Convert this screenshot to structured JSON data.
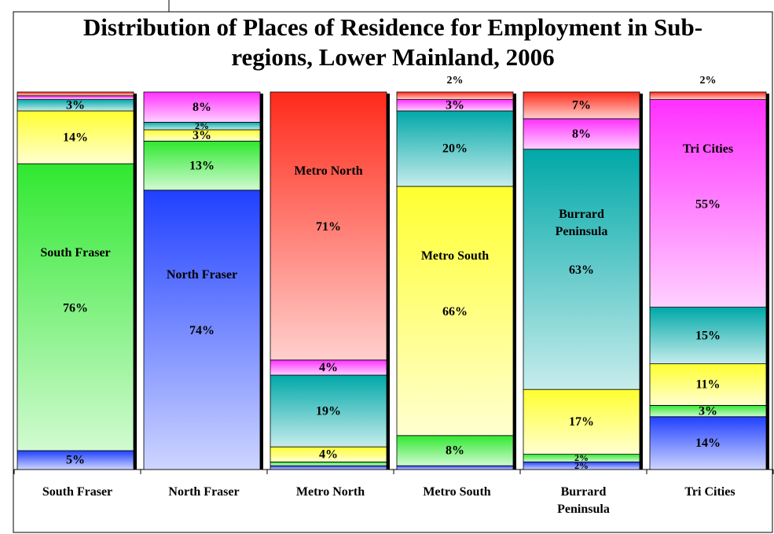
{
  "chart_data": {
    "type": "stacked-bar-100",
    "title": "Distribution of Places of Residence for Employment in Sub-regions, Lower Mainland, 2006",
    "categories": [
      "South Fraser",
      "North Fraser",
      "Metro North",
      "Metro South",
      "Burrard Peninsula",
      "Tri Cities"
    ],
    "series": [
      {
        "name": "North Fraser",
        "color": "#2040ff",
        "values": [
          5,
          74,
          1,
          1,
          2,
          14
        ],
        "value_labels": [
          "5%",
          "74%",
          null,
          null,
          "2%",
          "14%"
        ]
      },
      {
        "name": "South Fraser",
        "color": "#30e830",
        "values": [
          76,
          13,
          1,
          8,
          2,
          3
        ],
        "value_labels": [
          "76%",
          "13%",
          null,
          "8%",
          "2%",
          "3%"
        ]
      },
      {
        "name": "Metro South",
        "color": "#ffff30",
        "values": [
          14,
          3,
          4,
          66,
          17,
          11
        ],
        "value_labels": [
          "14%",
          "3%",
          "4%",
          "66%",
          "17%",
          "11%"
        ]
      },
      {
        "name": "Burrard Peninsula",
        "color": "#00a8a8",
        "values": [
          3,
          2,
          19,
          20,
          63,
          15
        ],
        "value_labels": [
          "3%",
          "2%",
          "19%",
          "20%",
          "63%",
          "15%"
        ]
      },
      {
        "name": "Tri Cities",
        "color": "#ff30ff",
        "values": [
          1,
          8,
          4,
          3,
          8,
          55
        ],
        "value_labels": [
          null,
          "8%",
          "4%",
          "3%",
          "8%",
          "55%"
        ]
      },
      {
        "name": "Metro North",
        "color": "#ff2a1a",
        "values": [
          1,
          0,
          71,
          2,
          7,
          2
        ],
        "value_labels": [
          null,
          null,
          "71%",
          "2%",
          "7%",
          "2%"
        ]
      }
    ]
  }
}
